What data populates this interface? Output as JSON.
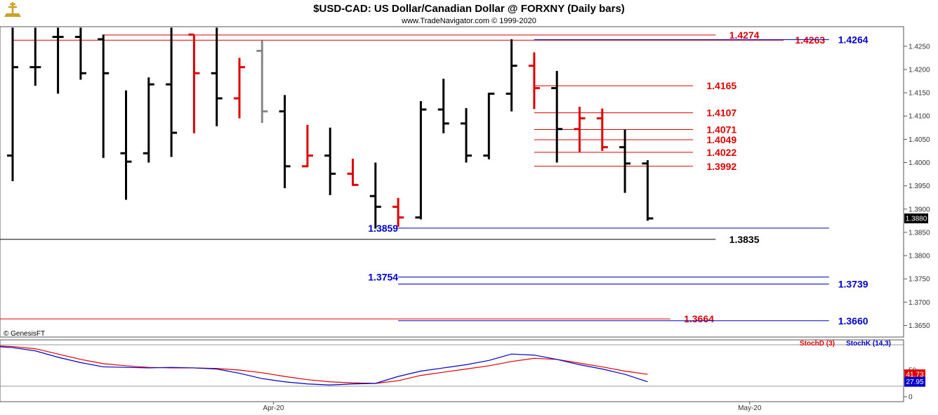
{
  "header": {
    "title": "$USD-CAD:  US Dollar/Canadian Dollar @ FORXNY  (Daily bars)",
    "subtitle": "www.TradeNavigator.com © 1999-2020",
    "watermark": "© GenesisFT"
  },
  "colors": {
    "bull": "#000000",
    "bear": "#e00000",
    "neutral": "#888888",
    "blue": "#0000cc",
    "red": "#e00000",
    "black": "#000000"
  },
  "chart_data": [
    {
      "type": "ohlc",
      "title": "$USD-CAD:  US Dollar/Canadian Dollar @ FORXNY  (Daily bars)",
      "ylim": [
        1.3625,
        1.4292
      ],
      "y_ticks": [
        "1.4250",
        "1.4200",
        "1.4150",
        "1.4100",
        "1.4050",
        "1.4000",
        "1.3950",
        "1.3900",
        "1.3850",
        "1.3800",
        "1.3750",
        "1.3700",
        "1.3650"
      ],
      "x_labels": [
        {
          "label": "Apr-20",
          "bar": 11.5
        },
        {
          "label": "May-20",
          "bar": 32.5
        }
      ],
      "last_price": "1.3880",
      "bars": [
        {
          "o": 1.4015,
          "h": 1.429,
          "l": 1.396,
          "c": 1.4205,
          "color": "bull"
        },
        {
          "o": 1.4205,
          "h": 1.429,
          "l": 1.4165,
          "c": 1.4205,
          "color": "bull"
        },
        {
          "o": 1.427,
          "h": 1.429,
          "l": 1.4148,
          "c": 1.427,
          "color": "bull"
        },
        {
          "o": 1.427,
          "h": 1.429,
          "l": 1.4178,
          "c": 1.4192,
          "color": "bull"
        },
        {
          "o": 1.4265,
          "h": 1.4275,
          "l": 1.401,
          "c": 1.4192,
          "color": "bull"
        },
        {
          "o": 1.402,
          "h": 1.4155,
          "l": 1.392,
          "c": 1.4002,
          "color": "bull"
        },
        {
          "o": 1.402,
          "h": 1.4183,
          "l": 1.4,
          "c": 1.4168,
          "color": "bull"
        },
        {
          "o": 1.4168,
          "h": 1.429,
          "l": 1.4012,
          "c": 1.4064,
          "color": "bull"
        },
        {
          "o": 1.4275,
          "h": 1.4275,
          "l": 1.4063,
          "c": 1.4192,
          "color": "bear"
        },
        {
          "o": 1.4192,
          "h": 1.429,
          "l": 1.4078,
          "c": 1.4138,
          "color": "bull"
        },
        {
          "o": 1.4138,
          "h": 1.4225,
          "l": 1.4095,
          "c": 1.4205,
          "color": "bear"
        },
        {
          "o": 1.424,
          "h": 1.4262,
          "l": 1.4085,
          "c": 1.411,
          "color": "neutral"
        },
        {
          "o": 1.411,
          "h": 1.4145,
          "l": 1.3945,
          "c": 1.3992,
          "color": "bull"
        },
        {
          "o": 1.3992,
          "h": 1.4081,
          "l": 1.399,
          "c": 1.4015,
          "color": "bear"
        },
        {
          "o": 1.4015,
          "h": 1.4075,
          "l": 1.393,
          "c": 1.3976,
          "color": "bull"
        },
        {
          "o": 1.3976,
          "h": 1.4008,
          "l": 1.395,
          "c": 1.3952,
          "color": "bear"
        },
        {
          "o": 1.3928,
          "h": 1.4,
          "l": 1.3858,
          "c": 1.3905,
          "color": "bull"
        },
        {
          "o": 1.3905,
          "h": 1.3924,
          "l": 1.3862,
          "c": 1.3882,
          "color": "bear"
        },
        {
          "o": 1.3882,
          "h": 1.4132,
          "l": 1.3878,
          "c": 1.4114,
          "color": "bull"
        },
        {
          "o": 1.4114,
          "h": 1.418,
          "l": 1.4063,
          "c": 1.4084,
          "color": "bull"
        },
        {
          "o": 1.4084,
          "h": 1.4117,
          "l": 1.4,
          "c": 1.4015,
          "color": "bull"
        },
        {
          "o": 1.4015,
          "h": 1.415,
          "l": 1.4007,
          "c": 1.4148,
          "color": "bull"
        },
        {
          "o": 1.4148,
          "h": 1.4265,
          "l": 1.411,
          "c": 1.4208,
          "color": "bull"
        },
        {
          "o": 1.4208,
          "h": 1.4237,
          "l": 1.4115,
          "c": 1.416,
          "color": "bear"
        },
        {
          "o": 1.416,
          "h": 1.4197,
          "l": 1.4,
          "c": 1.4072,
          "color": "bull"
        },
        {
          "o": 1.4072,
          "h": 1.412,
          "l": 1.4022,
          "c": 1.4095,
          "color": "bear"
        },
        {
          "o": 1.4095,
          "h": 1.4116,
          "l": 1.4025,
          "c": 1.4033,
          "color": "bear"
        },
        {
          "o": 1.4033,
          "h": 1.4071,
          "l": 1.3935,
          "c": 1.3998,
          "color": "bull"
        },
        {
          "o": 1.3998,
          "h": 1.4005,
          "l": 1.3875,
          "c": 1.388,
          "color": "bull"
        }
      ],
      "levels": [
        {
          "value": 1.4274,
          "label": "1.4274",
          "color": "red",
          "from": 4,
          "to": 31,
          "label_at": "right",
          "label_bar": 31.6
        },
        {
          "value": 1.4263,
          "label": "1.4263",
          "color": "red",
          "from": 0,
          "to": 34,
          "label_at": "right",
          "label_bar": 34.5
        },
        {
          "value": 1.4264,
          "label": "1.4264",
          "color": "blue",
          "from": 23,
          "to": 36,
          "label_at": "right",
          "label_bar": 36.4
        },
        {
          "value": 1.4165,
          "label": "1.4165",
          "color": "red",
          "from": 23,
          "to": 30,
          "label_at": "right",
          "label_bar": 30.6
        },
        {
          "value": 1.4107,
          "label": "1.4107",
          "color": "red",
          "from": 23,
          "to": 30,
          "label_at": "right",
          "label_bar": 30.6
        },
        {
          "value": 1.4071,
          "label": "1.4071",
          "color": "red",
          "from": 23,
          "to": 30,
          "label_at": "right",
          "label_bar": 30.6
        },
        {
          "value": 1.4049,
          "label": "1.4049",
          "color": "red",
          "from": 23,
          "to": 30,
          "label_at": "right",
          "label_bar": 30.6
        },
        {
          "value": 1.4022,
          "label": "1.4022",
          "color": "red",
          "from": 23,
          "to": 30,
          "label_at": "right",
          "label_bar": 30.6
        },
        {
          "value": 1.3992,
          "label": "1.3992",
          "color": "red",
          "from": 23,
          "to": 30,
          "label_at": "right",
          "label_bar": 30.6
        },
        {
          "value": 1.3859,
          "label": "1.3859",
          "color": "blue",
          "from": 17,
          "to": 36,
          "label_at": "left",
          "label_bar": 17.0
        },
        {
          "value": 1.3835,
          "label": "1.3835",
          "color": "black",
          "from": -1,
          "to": 31,
          "label_at": "right",
          "label_bar": 31.6
        },
        {
          "value": 1.3754,
          "label": "1.3754",
          "color": "blue",
          "from": 17,
          "to": 36,
          "label_at": "left",
          "label_bar": 17.0
        },
        {
          "value": 1.3739,
          "label": "1.3739",
          "color": "blue",
          "from": 17,
          "to": 36,
          "label_at": "right",
          "label_bar": 36.4
        },
        {
          "value": 1.3664,
          "label": "1.3664",
          "color": "red",
          "from": -1,
          "to": 29,
          "label_at": "right",
          "label_bar": 29.6
        },
        {
          "value": 1.366,
          "label": "1.3660",
          "color": "blue",
          "from": 17,
          "to": 36,
          "label_at": "right",
          "label_bar": 36.4
        }
      ]
    },
    {
      "type": "line",
      "ylim": [
        0,
        100
      ],
      "y_ticks": [
        "50",
        "0"
      ],
      "series": [
        {
          "name": "StochD (3)",
          "color": "red",
          "last_label": "41.73",
          "values": [
            96,
            96,
            94,
            90,
            80,
            70,
            62,
            58,
            55,
            54,
            54,
            53,
            50,
            45,
            38,
            32,
            28,
            26,
            25,
            30,
            40,
            46,
            52,
            58,
            66,
            72,
            70,
            63,
            56,
            48,
            42
          ]
        },
        {
          "name": "StochK (14,3)",
          "color": "blue",
          "last_label": "27.95",
          "values": [
            96,
            95,
            92,
            86,
            74,
            64,
            56,
            55,
            54,
            55,
            54,
            52,
            44,
            34,
            28,
            24,
            22,
            24,
            25,
            38,
            48,
            54,
            60,
            68,
            80,
            78,
            70,
            60,
            52,
            42,
            28
          ]
        }
      ]
    }
  ]
}
